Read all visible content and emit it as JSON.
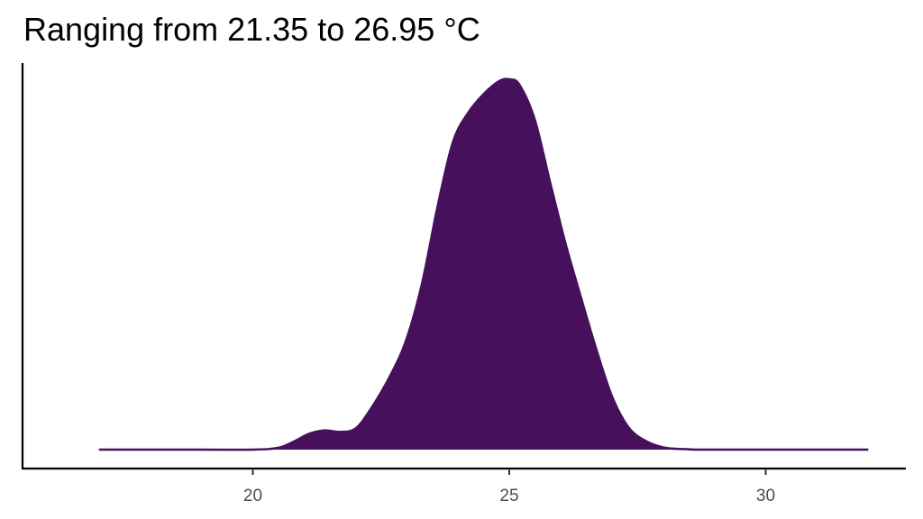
{
  "chart_data": {
    "type": "area",
    "subtype": "density",
    "title": "Ranging from 21.35 to 26.95 °C",
    "xlabel": "",
    "ylabel": "",
    "xlim": [
      16.2,
      33.0
    ],
    "ylim": [
      0,
      1
    ],
    "x_ticks": [
      20,
      25,
      30
    ],
    "y_ticks": [],
    "grid": false,
    "legend": "none",
    "fill_color": "#46105c",
    "line_color": "#46105c",
    "baseline_range": [
      17.0,
      32.0
    ],
    "x": [
      17.0,
      19.0,
      20.0,
      20.5,
      20.8,
      21.1,
      21.4,
      21.7,
      22.0,
      22.3,
      22.7,
      23.0,
      23.3,
      23.6,
      23.9,
      24.2,
      24.5,
      24.8,
      25.0,
      25.2,
      25.5,
      25.8,
      26.1,
      26.4,
      26.7,
      27.0,
      27.3,
      27.6,
      28.0,
      28.5,
      29.0,
      32.0
    ],
    "y": [
      0.0,
      0.0,
      0.0,
      0.005,
      0.022,
      0.043,
      0.052,
      0.048,
      0.057,
      0.11,
      0.205,
      0.3,
      0.45,
      0.655,
      0.83,
      0.91,
      0.96,
      0.995,
      1.0,
      0.985,
      0.89,
      0.72,
      0.555,
      0.41,
      0.27,
      0.145,
      0.065,
      0.028,
      0.006,
      0.001,
      0.0,
      0.0
    ]
  }
}
